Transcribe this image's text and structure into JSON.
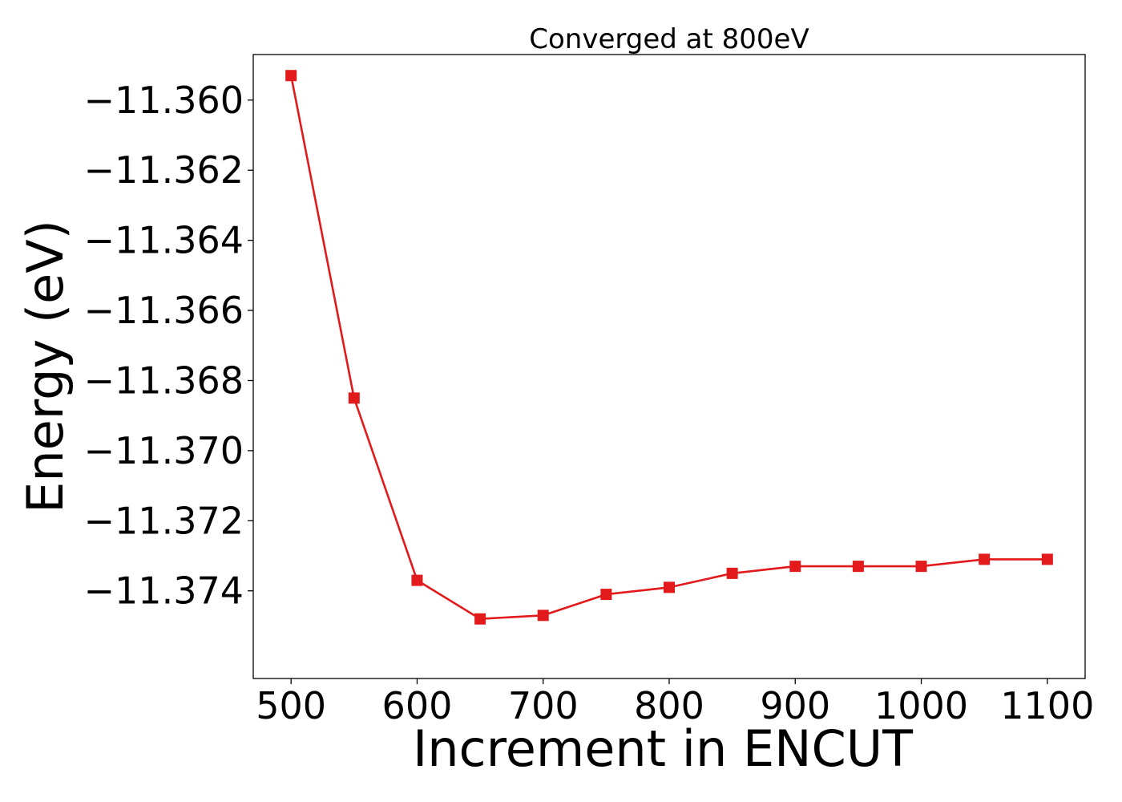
{
  "chart_data": {
    "type": "line",
    "title": "Converged at 800eV",
    "xlabel": "Increment in ENCUT",
    "ylabel": "Energy (eV)",
    "x": [
      500,
      550,
      600,
      650,
      700,
      750,
      800,
      850,
      900,
      950,
      1000,
      1050,
      1100
    ],
    "series": [
      {
        "values": [
          -11.3593,
          -11.3685,
          -11.3737,
          -11.3748,
          -11.3747,
          -11.3741,
          -11.3739,
          -11.3735,
          -11.3733,
          -11.3733,
          -11.3733,
          -11.3731,
          -11.3731
        ],
        "color": "#e31a1c",
        "marker": "square"
      }
    ],
    "xlim": [
      470,
      1130
    ],
    "ylim": [
      -11.3765,
      -11.3587
    ],
    "xticks": [
      500,
      600,
      700,
      800,
      900,
      1000,
      1100
    ],
    "xtick_labels": [
      "500",
      "600",
      "700",
      "800",
      "900",
      "1000",
      "1100"
    ],
    "yticks": [
      -11.36,
      -11.362,
      -11.364,
      -11.366,
      -11.368,
      -11.37,
      -11.372,
      -11.374
    ],
    "ytick_labels": [
      "−11.360",
      "−11.362",
      "−11.364",
      "−11.366",
      "−11.368",
      "−11.370",
      "−11.372",
      "−11.374"
    ],
    "grid": false,
    "legend": false
  }
}
